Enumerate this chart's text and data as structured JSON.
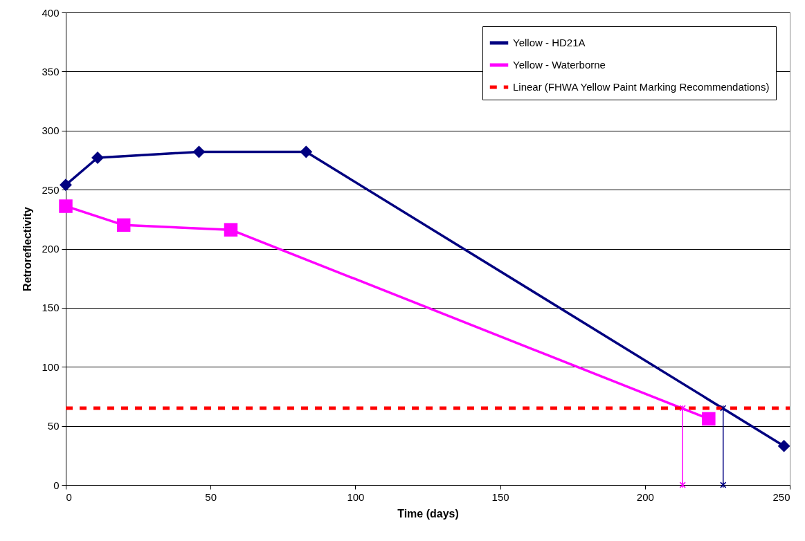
{
  "chart_data": {
    "type": "line",
    "xlabel": "Time (days)",
    "ylabel": "Retroreflectivity",
    "xlim": [
      0,
      250
    ],
    "xticks": [
      0,
      50,
      100,
      150,
      200,
      250
    ],
    "ylim": [
      0,
      400
    ],
    "yticks": [
      0,
      50,
      100,
      150,
      200,
      250,
      300,
      350,
      400
    ],
    "grid": "y",
    "legend": "top right",
    "series": [
      {
        "name": "Yellow - HD21A",
        "color": "#000080",
        "marker": "diamond",
        "x": [
          0,
          11,
          46,
          83,
          248
        ],
        "values": [
          254,
          277,
          282,
          282,
          33
        ]
      },
      {
        "name": "Yellow - Waterborne",
        "color": "#ff00ff",
        "marker": "square",
        "x": [
          0,
          20,
          57,
          222
        ],
        "values": [
          236,
          220,
          216,
          56
        ]
      },
      {
        "name": "Linear (FHWA Yellow Paint Marking Recommendations)",
        "color": "#ff0000",
        "marker": "none",
        "line_style": "dashed",
        "x": [
          0,
          250
        ],
        "values": [
          65,
          65
        ]
      },
      {
        "color": "#ff00ff",
        "marker": "cross",
        "x": [
          213,
          213
        ],
        "values": [
          0,
          65
        ]
      },
      {
        "color": "#000080",
        "marker": "cross",
        "x": [
          227,
          227
        ],
        "values": [
          0,
          65
        ]
      }
    ]
  }
}
